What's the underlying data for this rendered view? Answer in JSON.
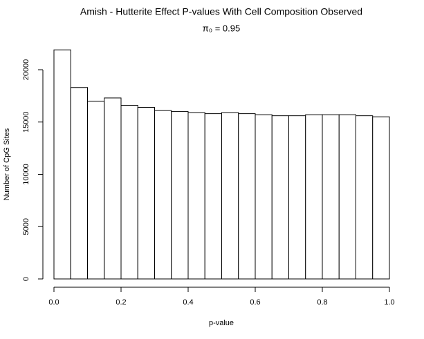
{
  "chart_data": {
    "type": "histogram",
    "title": "Amish - Hutterite Effect P-values With Cell Composition Observed",
    "subtitle": "π₀ = 0.95",
    "x_label": "p-value",
    "y_label": "Number of CpG Sites",
    "bins": [
      0,
      0.05,
      0.1,
      0.15,
      0.2,
      0.25,
      0.3,
      0.35,
      0.4,
      0.45,
      0.5,
      0.55,
      0.6,
      0.65,
      0.7,
      0.75,
      0.8,
      0.85,
      0.9,
      0.95,
      1
    ],
    "values": [
      21900,
      18300,
      17000,
      17300,
      16600,
      16400,
      16100,
      16000,
      15900,
      15800,
      15900,
      15800,
      15700,
      15600,
      15600,
      15700,
      15700,
      15700,
      15600,
      15500
    ],
    "color": "#ffffff",
    "edge_color": "#000000",
    "xlim": [
      0,
      1
    ],
    "xticks": [
      {
        "value": 0,
        "label": "0.0"
      },
      0.2,
      0.4,
      0.6,
      0.8,
      {
        "value": 1,
        "label": "1.0"
      }
    ],
    "ylim": [
      0,
      22000
    ],
    "yticks": [
      0,
      5000,
      10000,
      15000,
      20000
    ],
    "grid": false
  }
}
